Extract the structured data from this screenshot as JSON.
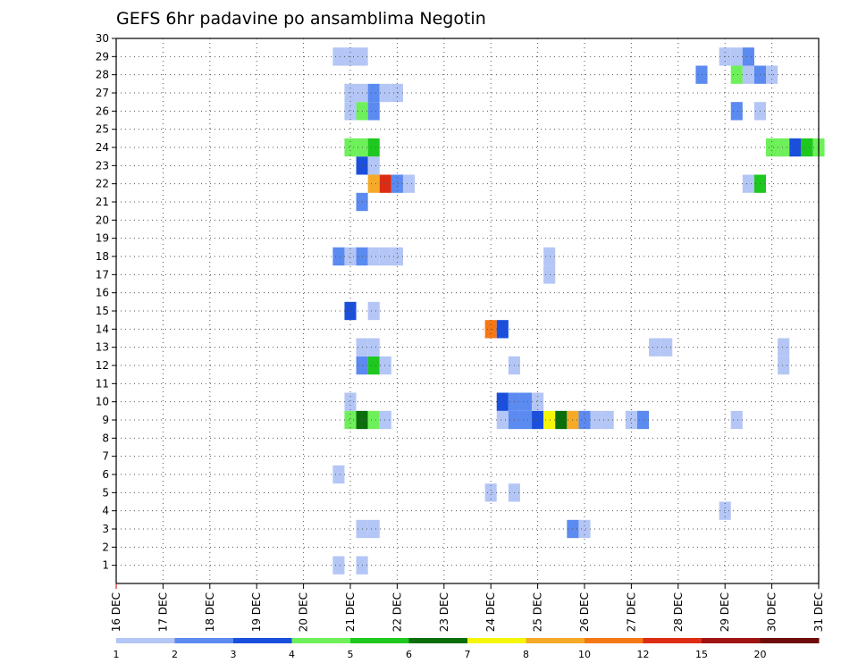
{
  "chart_data": {
    "type": "heatmap",
    "title": "GEFS 6hr padavine po ansamblima Negotin",
    "xlabel": "",
    "ylabel": "",
    "x_tick_labels": [
      "16 DEC",
      "17 DEC",
      "18 DEC",
      "19 DEC",
      "20 DEC",
      "21 DEC",
      "22 DEC",
      "23 DEC",
      "24 DEC",
      "25 DEC",
      "26 DEC",
      "27 DEC",
      "28 DEC",
      "29 DEC",
      "30 DEC",
      "31 DEC"
    ],
    "y_tick_labels": [
      "1",
      "2",
      "3",
      "4",
      "5",
      "6",
      "7",
      "8",
      "9",
      "10",
      "11",
      "12",
      "13",
      "14",
      "15",
      "16",
      "17",
      "18",
      "19",
      "20",
      "21",
      "22",
      "23",
      "24",
      "25",
      "26",
      "27",
      "28",
      "29",
      "30"
    ],
    "xlim": [
      0,
      60
    ],
    "ylim": [
      0,
      30
    ],
    "grid": true,
    "legend": {
      "placement": "bottom",
      "labels": [
        "1",
        "2",
        "3",
        "4",
        "5",
        "6",
        "7",
        "8",
        "10",
        "12",
        "15",
        "20"
      ],
      "colors": [
        "#b4c6f5",
        "#5b8af0",
        "#1a4fdc",
        "#6ef05a",
        "#1ec81e",
        "#0a6e0a",
        "#f5f50a",
        "#f5aa28",
        "#f57814",
        "#dc2d14",
        "#a01414",
        "#6e0a0a"
      ]
    },
    "cells": [
      [
        1,
        19,
        "#b4c6f5"
      ],
      [
        1,
        21,
        "#b4c6f5"
      ],
      [
        3,
        21,
        "#b4c6f5"
      ],
      [
        3,
        22,
        "#b4c6f5"
      ],
      [
        3,
        39,
        "#5b8af0"
      ],
      [
        3,
        40,
        "#b4c6f5"
      ],
      [
        4,
        52,
        "#b4c6f5"
      ],
      [
        5,
        32,
        "#b4c6f5"
      ],
      [
        5,
        34,
        "#b4c6f5"
      ],
      [
        6,
        19,
        "#b4c6f5"
      ],
      [
        9,
        20,
        "#6ef05a"
      ],
      [
        9,
        21,
        "#0a6e0a"
      ],
      [
        9,
        22,
        "#6ef05a"
      ],
      [
        9,
        23,
        "#b4c6f5"
      ],
      [
        9,
        33,
        "#b4c6f5"
      ],
      [
        9,
        34,
        "#5b8af0"
      ],
      [
        9,
        35,
        "#5b8af0"
      ],
      [
        9,
        36,
        "#1a4fdc"
      ],
      [
        9,
        37,
        "#f5f50a"
      ],
      [
        9,
        38,
        "#0a6e0a"
      ],
      [
        9,
        39,
        "#f5aa28"
      ],
      [
        9,
        40,
        "#5b8af0"
      ],
      [
        9,
        41,
        "#b4c6f5"
      ],
      [
        9,
        42,
        "#b4c6f5"
      ],
      [
        9,
        44,
        "#b4c6f5"
      ],
      [
        9,
        45,
        "#5b8af0"
      ],
      [
        9,
        53,
        "#b4c6f5"
      ],
      [
        10,
        20,
        "#b4c6f5"
      ],
      [
        10,
        33,
        "#1a4fdc"
      ],
      [
        10,
        34,
        "#5b8af0"
      ],
      [
        10,
        35,
        "#5b8af0"
      ],
      [
        10,
        36,
        "#b4c6f5"
      ],
      [
        12,
        21,
        "#5b8af0"
      ],
      [
        12,
        22,
        "#1ec81e"
      ],
      [
        12,
        23,
        "#b4c6f5"
      ],
      [
        12,
        34,
        "#b4c6f5"
      ],
      [
        12,
        57,
        "#b4c6f5"
      ],
      [
        13,
        21,
        "#b4c6f5"
      ],
      [
        13,
        22,
        "#b4c6f5"
      ],
      [
        13,
        46,
        "#b4c6f5"
      ],
      [
        13,
        47,
        "#b4c6f5"
      ],
      [
        13,
        57,
        "#b4c6f5"
      ],
      [
        14,
        32,
        "#f57814"
      ],
      [
        14,
        33,
        "#1a4fdc"
      ],
      [
        15,
        20,
        "#1a4fdc"
      ],
      [
        15,
        22,
        "#b4c6f5"
      ],
      [
        17,
        37,
        "#b4c6f5"
      ],
      [
        18,
        19,
        "#5b8af0"
      ],
      [
        18,
        20,
        "#b4c6f5"
      ],
      [
        18,
        21,
        "#5b8af0"
      ],
      [
        18,
        22,
        "#b4c6f5"
      ],
      [
        18,
        23,
        "#b4c6f5"
      ],
      [
        18,
        24,
        "#b4c6f5"
      ],
      [
        18,
        37,
        "#b4c6f5"
      ],
      [
        21,
        21,
        "#5b8af0"
      ],
      [
        22,
        22,
        "#f5aa28"
      ],
      [
        22,
        23,
        "#dc2d14"
      ],
      [
        22,
        24,
        "#5b8af0"
      ],
      [
        22,
        25,
        "#b4c6f5"
      ],
      [
        22,
        54,
        "#b4c6f5"
      ],
      [
        22,
        55,
        "#1ec81e"
      ],
      [
        23,
        21,
        "#1a4fdc"
      ],
      [
        23,
        22,
        "#b4c6f5"
      ],
      [
        24,
        20,
        "#6ef05a"
      ],
      [
        24,
        21,
        "#6ef05a"
      ],
      [
        24,
        22,
        "#1ec81e"
      ],
      [
        24,
        56,
        "#6ef05a"
      ],
      [
        24,
        57,
        "#6ef05a"
      ],
      [
        24,
        58,
        "#1a4fdc"
      ],
      [
        24,
        59,
        "#1ec81e"
      ],
      [
        24,
        60,
        "#6ef05a"
      ],
      [
        26,
        20,
        "#b4c6f5"
      ],
      [
        26,
        21,
        "#6ef05a"
      ],
      [
        26,
        22,
        "#5b8af0"
      ],
      [
        26,
        53,
        "#5b8af0"
      ],
      [
        26,
        55,
        "#b4c6f5"
      ],
      [
        27,
        20,
        "#b4c6f5"
      ],
      [
        27,
        21,
        "#b4c6f5"
      ],
      [
        27,
        22,
        "#5b8af0"
      ],
      [
        27,
        23,
        "#b4c6f5"
      ],
      [
        27,
        24,
        "#b4c6f5"
      ],
      [
        28,
        50,
        "#5b8af0"
      ],
      [
        28,
        53,
        "#6ef05a"
      ],
      [
        28,
        54,
        "#b4c6f5"
      ],
      [
        28,
        55,
        "#5b8af0"
      ],
      [
        28,
        56,
        "#b4c6f5"
      ],
      [
        29,
        19,
        "#b4c6f5"
      ],
      [
        29,
        20,
        "#b4c6f5"
      ],
      [
        29,
        21,
        "#b4c6f5"
      ],
      [
        29,
        52,
        "#b4c6f5"
      ],
      [
        29,
        53,
        "#b4c6f5"
      ],
      [
        29,
        54,
        "#5b8af0"
      ]
    ]
  }
}
